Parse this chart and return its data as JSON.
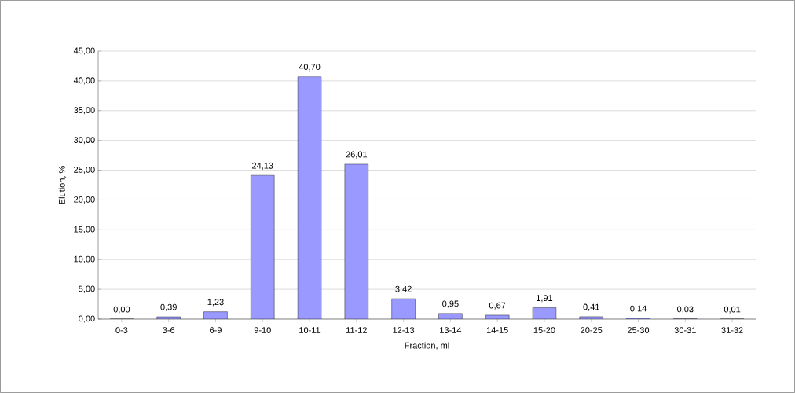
{
  "chart_data": {
    "type": "bar",
    "xlabel": "Fraction, ml",
    "ylabel": "Elution, %",
    "color": "#9999ff",
    "categories": [
      "0-3",
      "3-6",
      "6-9",
      "9-10",
      "10-11",
      "11-12",
      "12-13",
      "13-14",
      "14-15",
      "15-20",
      "20-25",
      "25-30",
      "30-31",
      "31-32"
    ],
    "values": [
      0.0,
      0.39,
      1.23,
      24.13,
      40.7,
      26.01,
      3.42,
      0.95,
      0.67,
      1.91,
      0.41,
      0.14,
      0.03,
      0.01
    ],
    "value_labels": [
      "0,00",
      "0,39",
      "1,23",
      "24,13",
      "40,70",
      "26,01",
      "3,42",
      "0,95",
      "0,67",
      "1,91",
      "0,41",
      "0,14",
      "0,03",
      "0,01"
    ],
    "ylim": [
      0,
      45
    ],
    "yticks": [
      {
        "value": 0,
        "label": "0,00"
      },
      {
        "value": 5,
        "label": "5,00"
      },
      {
        "value": 10,
        "label": "10,00"
      },
      {
        "value": 15,
        "label": "15,00"
      },
      {
        "value": 20,
        "label": "20,00"
      },
      {
        "value": 25,
        "label": "25,00"
      },
      {
        "value": 30,
        "label": "30,00"
      },
      {
        "value": 35,
        "label": "35,00"
      },
      {
        "value": 40,
        "label": "40,00"
      },
      {
        "value": 45,
        "label": "45,00"
      }
    ],
    "grid": "y"
  }
}
